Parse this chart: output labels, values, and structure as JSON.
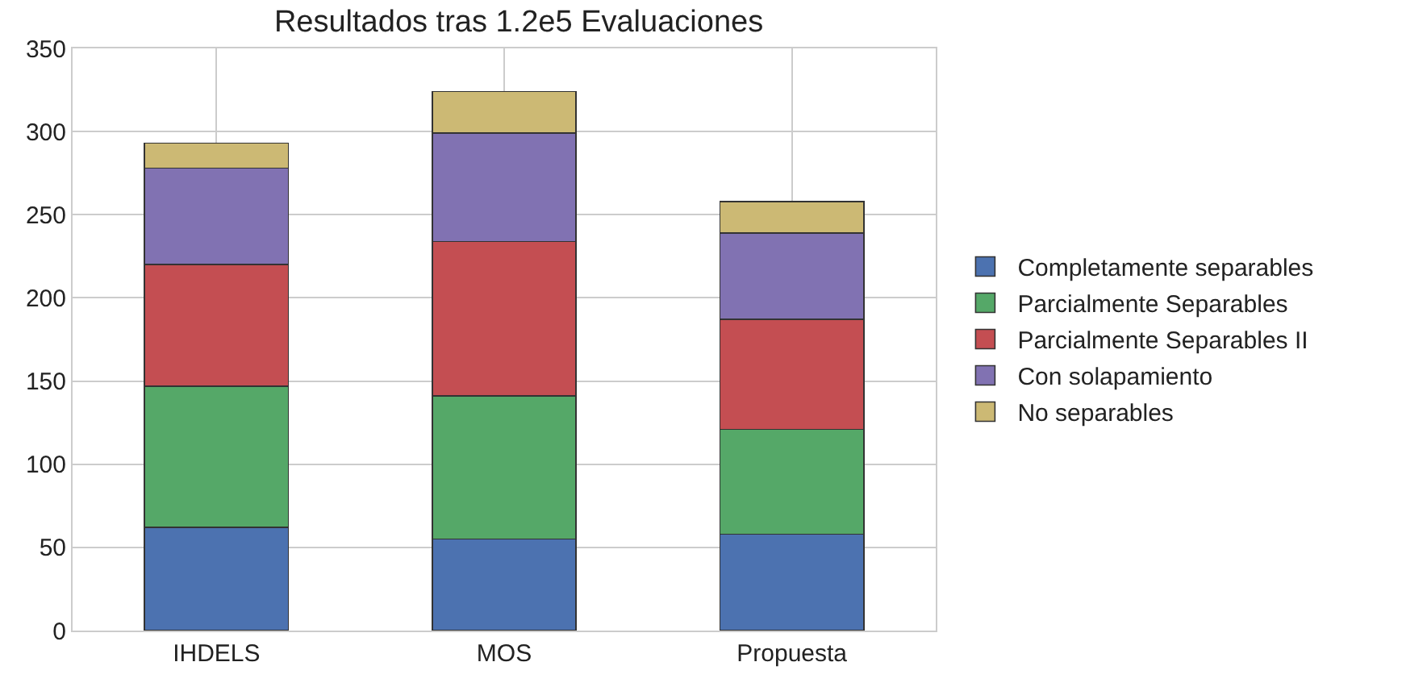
{
  "chart_data": {
    "type": "bar",
    "title": "Resultados tras 1.2e5 Evaluaciones",
    "stacked": true,
    "categories": [
      "IHDELS",
      "MOS",
      "Propuesta"
    ],
    "series": [
      {
        "name": "Completamente separables",
        "color": "#4c72b0",
        "values": [
          62,
          55,
          58
        ]
      },
      {
        "name": "Parcialmente Separables",
        "color": "#55a868",
        "values": [
          85,
          86,
          63
        ]
      },
      {
        "name": "Parcialmente Separables II",
        "color": "#c44e52",
        "values": [
          73,
          93,
          66
        ]
      },
      {
        "name": "Con solapamiento",
        "color": "#8172b2",
        "values": [
          58,
          65,
          52
        ]
      },
      {
        "name": "No separables",
        "color": "#ccb974",
        "values": [
          15,
          25,
          19
        ]
      }
    ],
    "ylim": [
      0,
      350
    ],
    "yticks": [
      0,
      50,
      100,
      150,
      200,
      250,
      300,
      350
    ],
    "grid": true,
    "legend": "right"
  }
}
